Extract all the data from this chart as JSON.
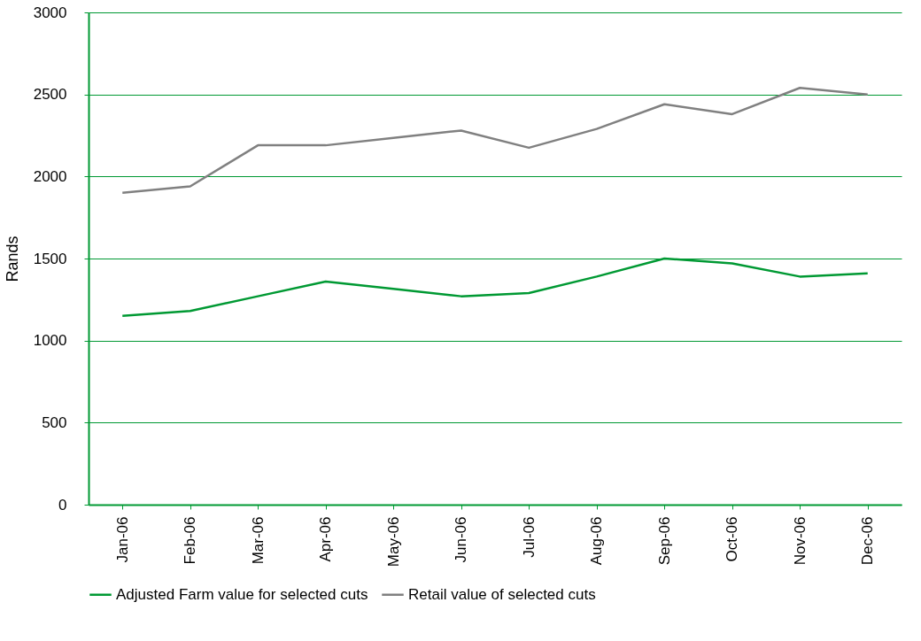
{
  "chart_data": {
    "type": "line",
    "ylabel": "Rands",
    "categories": [
      "Jan-06",
      "Feb-06",
      "Mar-06",
      "Apr-06",
      "May-06",
      "Jun-06",
      "Jul-06",
      "Aug-06",
      "Sep-06",
      "Oct-06",
      "Nov-06",
      "Dec-06"
    ],
    "series": [
      {
        "name": "Adjusted Farm value for selected cuts",
        "color": "#009933",
        "values": [
          1150,
          1180,
          1270,
          1360,
          1315,
          1270,
          1290,
          1390,
          1500,
          1470,
          1390,
          1410
        ]
      },
      {
        "name": "Retail value of selected cuts",
        "color": "#808080",
        "values": [
          1900,
          1940,
          2190,
          2190,
          2235,
          2280,
          2175,
          2290,
          2440,
          2380,
          2540,
          2500
        ]
      }
    ],
    "ylim": [
      0,
      3000
    ],
    "yticks": [
      0,
      500,
      1000,
      1500,
      2000,
      2500,
      3000
    ],
    "grid": "y",
    "legend": "bottom",
    "marker": "none",
    "line_style": "solid"
  }
}
